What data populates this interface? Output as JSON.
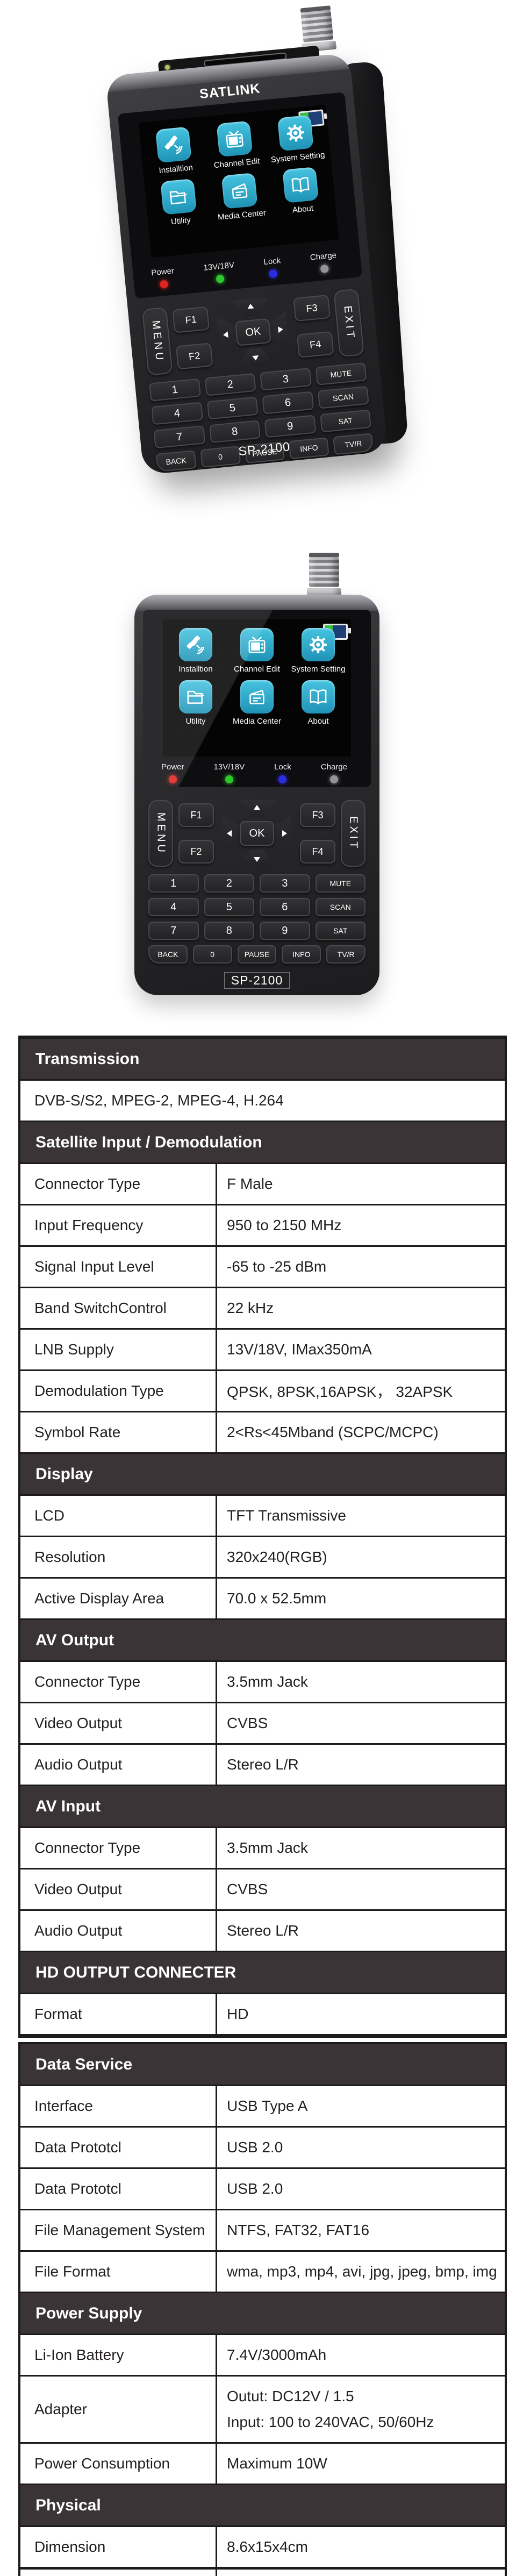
{
  "colors": {
    "icon_tile_teal": "#2aa6c9",
    "table_header_bg": "#3a3437",
    "table_border": "#1d1a1b",
    "led_power": "#e0231f",
    "led_13v18v": "#2ec82e",
    "led_lock": "#2b2de2",
    "led_charge": "#949496",
    "battery_green": "#35c23c",
    "battery_blue": "#1e3f77"
  },
  "devices": [
    {
      "view": "angled",
      "brand_label": "SATLINK",
      "model_label": "SP-2100",
      "screen": {
        "battery_icon": "battery-icon",
        "rows": [
          [
            {
              "icon": "satellite-icon",
              "label": "Installtion"
            },
            {
              "icon": "tv-icon",
              "label": "Channel Edit"
            },
            {
              "icon": "gear-icon",
              "label": "System Setting"
            }
          ],
          [
            {
              "icon": "folder-icon",
              "label": "Utility"
            },
            {
              "icon": "media-icon",
              "label": "Media Center"
            },
            {
              "icon": "book-icon",
              "label": "About"
            }
          ]
        ]
      },
      "indicators": [
        {
          "label": "Power",
          "color": "#e0231f"
        },
        {
          "label": "13V/18V",
          "color": "#2ec82e"
        },
        {
          "label": "Lock",
          "color": "#2b2de2"
        },
        {
          "label": "Charge",
          "color": "#949496"
        }
      ],
      "keypad": {
        "menu": "MENU",
        "exit": "EXIT",
        "ok": "OK",
        "fkeys": [
          "F1",
          "F2",
          "F3",
          "F4"
        ],
        "digits": [
          "1",
          "2",
          "3",
          "4",
          "5",
          "6",
          "7",
          "8",
          "9"
        ],
        "side": [
          "MUTE",
          "SCAN",
          "SAT"
        ],
        "bottom": [
          "BACK",
          "0",
          "PAUSE",
          "INFO",
          "TV/R"
        ]
      }
    },
    {
      "view": "front",
      "model_label": "SP-2100",
      "screen": {
        "battery_icon": "battery-icon",
        "rows": [
          [
            {
              "icon": "satellite-icon",
              "label": "Installtion"
            },
            {
              "icon": "tv-icon",
              "label": "Channel Edit"
            },
            {
              "icon": "gear-icon",
              "label": "System Setting"
            }
          ],
          [
            {
              "icon": "folder-icon",
              "label": "Utility"
            },
            {
              "icon": "media-icon",
              "label": "Media Center"
            },
            {
              "icon": "book-icon",
              "label": "About"
            }
          ]
        ]
      },
      "indicators": [
        {
          "label": "Power",
          "color": "#e0231f"
        },
        {
          "label": "13V/18V",
          "color": "#2ec82e"
        },
        {
          "label": "Lock",
          "color": "#2b2de2"
        },
        {
          "label": "Charge",
          "color": "#949496"
        }
      ],
      "keypad": {
        "menu": "MENU",
        "exit": "EXIT",
        "ok": "OK",
        "fkeys": [
          "F1",
          "F2",
          "F3",
          "F4"
        ],
        "digits": [
          "1",
          "2",
          "3",
          "4",
          "5",
          "6",
          "7",
          "8",
          "9"
        ],
        "side": [
          "MUTE",
          "SCAN",
          "SAT"
        ],
        "bottom": [
          "BACK",
          "0",
          "PAUSE",
          "INFO",
          "TV/R"
        ]
      }
    }
  ],
  "spec_table": {
    "sections": [
      {
        "title": "Transmission",
        "rows": [
          {
            "value_full": "DVB-S/S2, MPEG-2, MPEG-4, H.264"
          }
        ]
      },
      {
        "title": "Satellite Input / Demodulation",
        "rows": [
          {
            "label": "Connector Type",
            "value": "F Male"
          },
          {
            "label": "Input Frequency",
            "value": "950 to 2150 MHz"
          },
          {
            "label": "Signal Input Level",
            "value": "-65 to -25 dBm"
          },
          {
            "label": "Band SwitchControl",
            "value": "22 kHz"
          },
          {
            "label": "LNB Supply",
            "value": "13V/18V, IMax350mA"
          },
          {
            "label": "Demodulation Type",
            "value": "QPSK, 8PSK,16APSK， 32APSK"
          },
          {
            "label": "Symbol Rate",
            "value": "2<Rs<45Mband (SCPC/MCPC)"
          }
        ]
      },
      {
        "title": "Display",
        "rows": [
          {
            "label": "LCD",
            "value": "TFT Transmissive"
          },
          {
            "label": "Resolution",
            "value": "320x240(RGB)"
          },
          {
            "label": "Active Display Area",
            "value": "70.0 x 52.5mm"
          }
        ]
      },
      {
        "title": "AV Output",
        "rows": [
          {
            "label": "Connector Type",
            "value": "3.5mm Jack"
          },
          {
            "label": "Video Output",
            "value": "CVBS"
          },
          {
            "label": "Audio Output",
            "value": "Stereo L/R"
          }
        ]
      },
      {
        "title": "AV Input",
        "rows": [
          {
            "label": "Connector Type",
            "value": "3.5mm Jack"
          },
          {
            "label": "Video Output",
            "value": "CVBS"
          },
          {
            "label": "Audio Output",
            "value": "Stereo L/R"
          }
        ]
      },
      {
        "title": "HD OUTPUT CONNECTER",
        "rows": [
          {
            "label": "Format",
            "value": "HD"
          }
        ]
      },
      {
        "title": "Data Service",
        "new_block": true,
        "rows": [
          {
            "label": "Interface",
            "value": "USB Type A"
          },
          {
            "label": "Data Prototcl",
            "value": "USB 2.0"
          },
          {
            "label": "Data Prototcl",
            "value": "USB 2.0"
          },
          {
            "label": "File Management System",
            "value": "NTFS, FAT32, FAT16"
          },
          {
            "label": "File Format",
            "value": "wma, mp3, mp4, avi, jpg, jpeg, bmp, img"
          }
        ]
      },
      {
        "title": "Power Supply",
        "rows": [
          {
            "label": "Li-Ion Battery",
            "value": "7.4V/3000mAh"
          },
          {
            "label": "Adapter",
            "value_lines": [
              "Outut: DC12V / 1.5",
              "Input: 100 to 240VAC, 50/60Hz"
            ],
            "tall": true
          },
          {
            "label": "Power Consumption",
            "value": "Maximum 10W"
          }
        ]
      },
      {
        "title": "Physical",
        "rows": [
          {
            "label": "Dimension",
            "value": "8.6x15x4cm"
          }
        ]
      }
    ]
  }
}
